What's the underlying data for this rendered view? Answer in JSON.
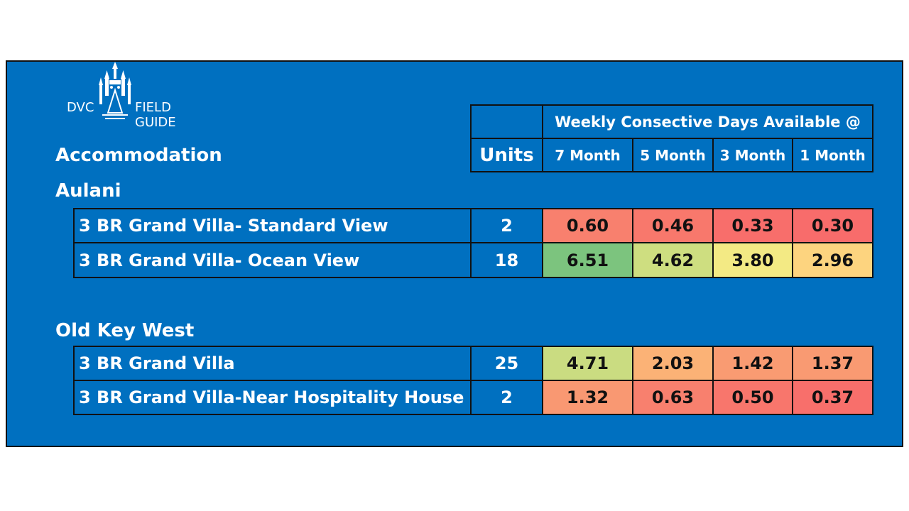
{
  "logo": {
    "left": "DVC",
    "right": "FIELD GUIDE"
  },
  "header": {
    "group_label": "Weekly Consective Days Available @",
    "accommodation_label": "Accommodation",
    "units_label": "Units",
    "columns": [
      "7 Month",
      "5 Month",
      "3 Month",
      "1 Month"
    ]
  },
  "chart_data": {
    "type": "table",
    "columns": [
      "Accommodation",
      "Units",
      "7 Month",
      "5 Month",
      "3 Month",
      "1 Month"
    ],
    "groups": [
      {
        "name": "Aulani",
        "rows": [
          {
            "label": "3 BR Grand Villa- Standard View",
            "units": "2",
            "values": [
              "0.60",
              "0.46",
              "0.33",
              "0.30"
            ],
            "colors": [
              "#f8806e",
              "#f8786c",
              "#f86e6b",
              "#f86c6b"
            ]
          },
          {
            "label": "3 BR Grand Villa- Ocean View",
            "units": "18",
            "values": [
              "6.51",
              "4.62",
              "3.80",
              "2.96"
            ],
            "colors": [
              "#7cc47e",
              "#cede80",
              "#f3ea84",
              "#fdd47f"
            ]
          }
        ]
      },
      {
        "name": "Old Key West",
        "rows": [
          {
            "label": "3 BR Grand Villa",
            "units": "25",
            "values": [
              "4.71",
              "2.03",
              "1.42",
              "1.37"
            ],
            "colors": [
              "#cadc81",
              "#fbb276",
              "#f99b72",
              "#f99a72"
            ]
          },
          {
            "label": "3 BR Grand Villa-Near Hospitality House",
            "units": "2",
            "values": [
              "1.32",
              "0.63",
              "0.50",
              "0.37"
            ],
            "colors": [
              "#f99872",
              "#f8806e",
              "#f8766c",
              "#f86f6b"
            ]
          }
        ]
      }
    ]
  }
}
